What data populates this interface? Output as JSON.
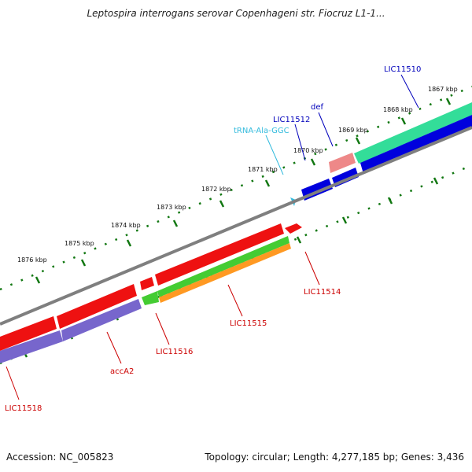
{
  "title": "Leptospira interrogans serovar Copenhageni str. Fiocruz L1-1...",
  "footer": {
    "accession": "Accession: NC_005823",
    "summary": "Topology: circular; Length: 4,277,185 bp; Genes: 3,436"
  },
  "colors": {
    "backbone": "#7f7f7f",
    "forward_blue": "#0000dd",
    "teal": "#33dd99",
    "pink": "#ee7777",
    "red": "#ee1111",
    "purple": "#7766cc",
    "green": "#44cc33",
    "orange": "#ff9922",
    "tick_green": "#117711",
    "label_red": "#cc0000",
    "label_blue": "#0000bb",
    "label_cyan": "#33bbdd"
  },
  "ticks": [
    "1867 kbp",
    "1868 kbp",
    "1869 kbp",
    "1870 kbp",
    "1871 kbp",
    "1872 kbp",
    "1873 kbp",
    "1874 kbp",
    "1875 kbp",
    "1876 kbp"
  ],
  "labels_upper": [
    "LIC11510",
    "def",
    "LIC11512",
    "tRNA-Ala-GGC"
  ],
  "labels_lower": [
    "LIC11514",
    "LIC11515",
    "LIC11516",
    "accA2",
    "LIC11518"
  ]
}
